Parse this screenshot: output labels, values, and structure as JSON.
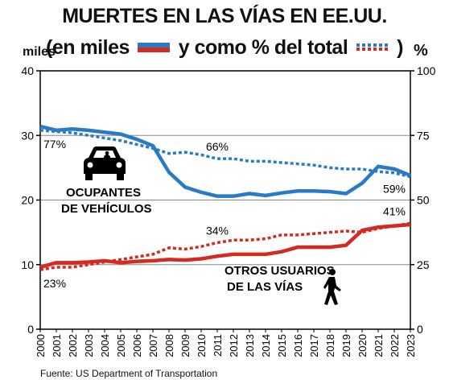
{
  "header": {
    "title": "MUERTES EN LAS VÍAS EN EE.UU.",
    "subtitle_part1": "(en miles",
    "subtitle_part2": "y como % del total",
    "subtitle_part3": ")"
  },
  "axis_units": {
    "left": "miles",
    "right": "%"
  },
  "source": "Fuente: US Department of Transportation",
  "colors": {
    "blue": "#2a7bc6",
    "red": "#d42a1f",
    "grid": "#888888"
  },
  "annotations": {
    "occupants_line1": "OCUPANTES",
    "occupants_line2": "DE VEHÍCULOS",
    "others_line1": "OTROS USUARIOS",
    "others_line2": "DE LAS VÍAS",
    "car_icon": "car-icon",
    "pedestrian_icon": "pedestrian-icon"
  },
  "chart_data": {
    "type": "line",
    "title": "MUERTES EN LAS VÍAS EN EE.UU.",
    "x": [
      2000,
      2001,
      2002,
      2003,
      2004,
      2005,
      2006,
      2007,
      2008,
      2009,
      2010,
      2011,
      2012,
      2013,
      2014,
      2015,
      2016,
      2017,
      2018,
      2019,
      2020,
      2021,
      2022,
      2023
    ],
    "y_left_ticks": [
      0,
      10,
      20,
      30,
      40
    ],
    "y_right_ticks": [
      0,
      25,
      50,
      75,
      100
    ],
    "ylim_left": [
      0,
      40
    ],
    "ylim_right": [
      0,
      100
    ],
    "grid": true,
    "series": [
      {
        "axis": "left",
        "style": "solid",
        "color": "blue",
        "values": [
          31.4,
          30.8,
          31.0,
          30.8,
          30.5,
          30.2,
          29.4,
          28.4,
          24.3,
          22.0,
          21.2,
          20.6,
          20.6,
          21.0,
          20.7,
          21.1,
          21.4,
          21.4,
          21.3,
          21.0,
          22.6,
          25.2,
          24.8,
          23.8
        ]
      },
      {
        "axis": "right",
        "style": "dotted",
        "color": "blue",
        "values": [
          77,
          76.5,
          76,
          75,
          74,
          73,
          71.5,
          70,
          68,
          68.5,
          67.5,
          66,
          66,
          65,
          65,
          64.5,
          64,
          63.5,
          62.5,
          62,
          62,
          61,
          60.5,
          59
        ]
      },
      {
        "axis": "left",
        "style": "solid",
        "color": "red",
        "values": [
          9.6,
          10.3,
          10.3,
          10.4,
          10.6,
          10.3,
          10.5,
          10.6,
          10.8,
          10.7,
          10.9,
          11.3,
          11.6,
          11.6,
          11.6,
          12.0,
          12.7,
          12.7,
          12.7,
          13.0,
          15.3,
          15.8,
          16.0,
          16.2
        ]
      },
      {
        "axis": "right",
        "style": "dotted",
        "color": "red",
        "values": [
          23,
          24,
          24,
          25,
          26,
          27,
          28,
          29,
          31.5,
          31,
          32,
          33.5,
          34.5,
          34.5,
          35,
          36.5,
          36.5,
          37,
          37.5,
          38,
          37.5,
          39,
          40,
          41
        ]
      }
    ],
    "labels": [
      {
        "text": "77%",
        "x": 2000,
        "series": 1
      },
      {
        "text": "66%",
        "x": 2011,
        "series": 1
      },
      {
        "text": "59%",
        "x": 2023,
        "series": 1
      },
      {
        "text": "23%",
        "x": 2000,
        "series": 3
      },
      {
        "text": "34%",
        "x": 2011,
        "series": 3
      },
      {
        "text": "41%",
        "x": 2023,
        "series": 3
      }
    ]
  }
}
